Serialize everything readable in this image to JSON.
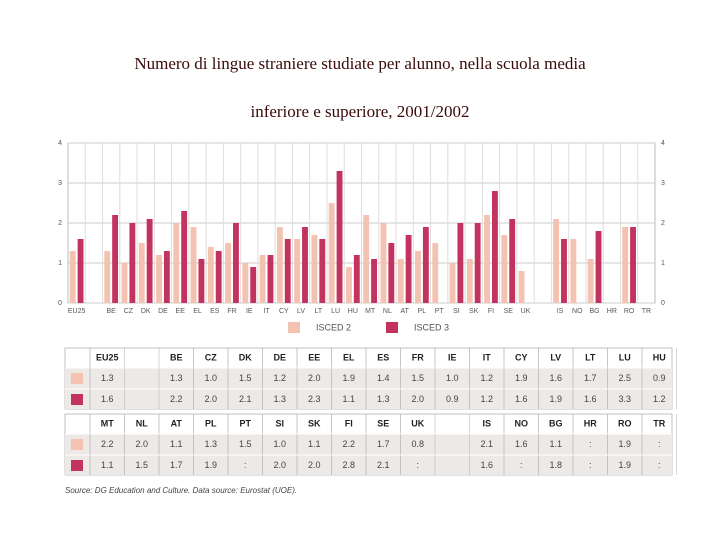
{
  "chart_data": {
    "type": "bar",
    "title": "Numero di lingue straniere studiate per alunno, nella scuola media",
    "subtitle": "inferiore e superiore, 2001/2002",
    "categories": [
      "EU25",
      "BE",
      "CZ",
      "DK",
      "DE",
      "EE",
      "EL",
      "ES",
      "FR",
      "IE",
      "IT",
      "CY",
      "LV",
      "LT",
      "LU",
      "HU",
      "MT",
      "NL",
      "AT",
      "PL",
      "PT",
      "SI",
      "SK",
      "FI",
      "SE",
      "UK",
      "IS",
      "NO",
      "BG",
      "HR",
      "RO",
      "TR"
    ],
    "series": [
      {
        "name": "ISCED 2",
        "color": "#f4c2b0",
        "values": [
          1.3,
          1.3,
          1.0,
          1.5,
          1.2,
          2.0,
          1.9,
          1.4,
          1.5,
          1.0,
          1.2,
          1.9,
          1.6,
          1.7,
          2.5,
          0.9,
          2.2,
          2.0,
          1.1,
          1.3,
          1.5,
          1.0,
          1.1,
          2.2,
          1.7,
          0.8,
          2.1,
          1.6,
          1.1,
          null,
          1.9,
          null
        ],
        "value_labels": [
          "1.3",
          "1.3",
          "1.0",
          "1.5",
          "1.2",
          "2.0",
          "1.9",
          "1.4",
          "1.5",
          "1.0",
          "1.2",
          "1.9",
          "1.6",
          "1.7",
          "2.5",
          "0.9",
          "2.2",
          "2.0",
          "1.1",
          "1.3",
          "1.5",
          "1.0",
          "1.1",
          "2.2",
          "1.7",
          "0.8",
          "2.1",
          "1.6",
          "1.1",
          ":",
          "1.9",
          ":"
        ]
      },
      {
        "name": "ISCED 3",
        "color": "#c2345f",
        "values": [
          1.6,
          2.2,
          2.0,
          2.1,
          1.3,
          2.3,
          1.1,
          1.3,
          2.0,
          0.9,
          1.2,
          1.6,
          1.9,
          1.6,
          3.3,
          1.2,
          1.1,
          1.5,
          1.7,
          1.9,
          null,
          2.0,
          2.0,
          2.8,
          2.1,
          null,
          1.6,
          null,
          1.8,
          null,
          1.9,
          null
        ],
        "value_labels": [
          "1.6",
          "2.2",
          "2.0",
          "2.1",
          "1.3",
          "2.3",
          "1.1",
          "1.3",
          "2.0",
          "0.9",
          "1.2",
          "1.6",
          "1.9",
          "1.6",
          "3.3",
          "1.2",
          "1.1",
          "1.5",
          "1.7",
          "1.9",
          ":",
          "2.0",
          "2.0",
          "2.8",
          "2.1",
          ":",
          "1.6",
          ":",
          "1.8",
          ":",
          "1.9",
          ":"
        ]
      }
    ],
    "ylim": [
      0,
      4
    ],
    "yticks": [
      0,
      1,
      2,
      3,
      4
    ],
    "grid": true,
    "source": "Source: DG Education and Culture. Data source: Eurostat (UOE)."
  }
}
